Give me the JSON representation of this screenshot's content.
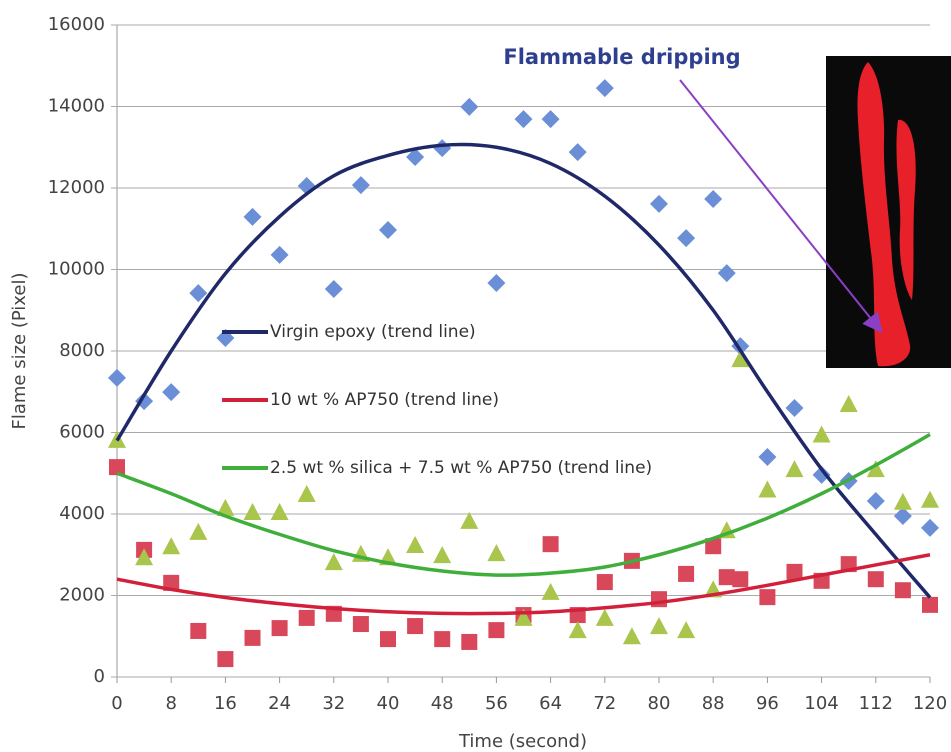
{
  "chart_data": {
    "type": "scatter",
    "annotation": "Flammable dripping",
    "x_label": "Time (second)",
    "y_label": "Flame size (Pixel)",
    "xlim": [
      0,
      120
    ],
    "ylim": [
      0,
      16000
    ],
    "xticks": [
      0,
      8,
      16,
      24,
      32,
      40,
      48,
      56,
      64,
      72,
      80,
      88,
      96,
      104,
      112,
      120
    ],
    "yticks": [
      0,
      2000,
      4000,
      6000,
      8000,
      10000,
      12000,
      14000,
      16000
    ],
    "grid": true,
    "trend_x": [
      0,
      8,
      16,
      24,
      32,
      40,
      48,
      56,
      64,
      72,
      80,
      88,
      96,
      104,
      112,
      120
    ],
    "series": [
      {
        "name": "Virgin epoxy (trend line)",
        "marker": "diamond",
        "marker_color": "#6b8fd6",
        "color": "#1f2868",
        "x": [
          0,
          4,
          8,
          12,
          16,
          20,
          24,
          28,
          32,
          36,
          40,
          44,
          48,
          52,
          56,
          60,
          64,
          68,
          72,
          80,
          84,
          88,
          90,
          92,
          96,
          100,
          104,
          108,
          112,
          116,
          120
        ],
        "values": [
          7340,
          6770,
          6990,
          9420,
          8320,
          11290,
          10360,
          12050,
          9520,
          12070,
          10970,
          12760,
          12980,
          13990,
          9670,
          13690,
          13690,
          12880,
          14450,
          11610,
          10770,
          11730,
          9910,
          8120,
          5400,
          6600,
          4960,
          4810,
          4320,
          3950,
          3660
        ],
        "trend": [
          5800,
          8000,
          9900,
          11300,
          12300,
          12800,
          13050,
          13000,
          12600,
          11800,
          10600,
          9000,
          7000,
          5100,
          3500,
          1950
        ]
      },
      {
        "name": "10 wt % AP750 (trend line)",
        "marker": "square",
        "marker_color": "#d9485a",
        "color": "#d3203a",
        "x": [
          0,
          4,
          8,
          12,
          16,
          20,
          24,
          28,
          32,
          36,
          40,
          44,
          48,
          52,
          56,
          60,
          64,
          68,
          72,
          76,
          80,
          84,
          88,
          90,
          92,
          96,
          100,
          104,
          108,
          112,
          116,
          120
        ],
        "values": [
          5150,
          3120,
          2310,
          1130,
          440,
          960,
          1200,
          1450,
          1550,
          1300,
          930,
          1250,
          930,
          860,
          1150,
          1520,
          3260,
          1520,
          2330,
          2850,
          1910,
          2530,
          3210,
          2450,
          2400,
          1960,
          2580,
          2360,
          2770,
          2400,
          2130,
          1770
        ],
        "trend": [
          2400,
          2150,
          1950,
          1800,
          1680,
          1600,
          1560,
          1560,
          1600,
          1700,
          1830,
          2020,
          2250,
          2500,
          2750,
          3000
        ]
      },
      {
        "name": "2.5 wt % silica + 7.5 wt % AP750 (trend line)",
        "marker": "triangle",
        "marker_color": "#a9c54b",
        "color": "#3fae3a",
        "x": [
          0,
          4,
          8,
          12,
          16,
          20,
          24,
          28,
          32,
          36,
          40,
          44,
          48,
          52,
          56,
          60,
          64,
          68,
          72,
          76,
          80,
          84,
          88,
          90,
          92,
          96,
          100,
          104,
          108,
          112,
          116,
          120
        ],
        "values": [
          5820,
          2940,
          3210,
          3560,
          4150,
          4050,
          4050,
          4490,
          2820,
          3020,
          2940,
          3240,
          2990,
          3830,
          3040,
          1450,
          2090,
          1150,
          1450,
          1000,
          1250,
          1150,
          2150,
          3600,
          7800,
          4600,
          5100,
          5950,
          6700,
          5100,
          4300,
          4350
        ],
        "trend": [
          5000,
          4500,
          3950,
          3500,
          3100,
          2800,
          2600,
          2500,
          2550,
          2700,
          3000,
          3400,
          3900,
          4500,
          5200,
          5950
        ]
      }
    ]
  }
}
